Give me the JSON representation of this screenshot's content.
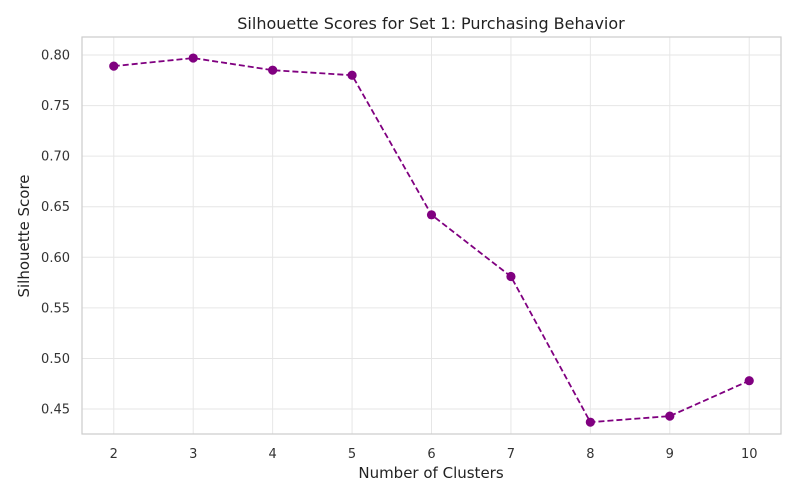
{
  "chart_data": {
    "type": "line",
    "title": "Silhouette Scores for Set 1: Purchasing Behavior",
    "xlabel": "Number of Clusters",
    "ylabel": "Silhouette Score",
    "x": [
      2,
      3,
      4,
      5,
      6,
      7,
      8,
      9,
      10
    ],
    "series": [
      {
        "values": [
          0.789,
          0.797,
          0.785,
          0.78,
          0.642,
          0.581,
          0.437,
          0.443,
          0.478
        ],
        "color": "#800080",
        "line_style": "dashed",
        "marker": "circle"
      }
    ],
    "xticks": [
      "2",
      "3",
      "4",
      "5",
      "6",
      "7",
      "8",
      "9",
      "10"
    ],
    "yticks": [
      "0.45",
      "0.50",
      "0.55",
      "0.60",
      "0.65",
      "0.70",
      "0.75",
      "0.80"
    ],
    "xlim": [
      1.6,
      10.4
    ],
    "ylim": [
      0.4253,
      0.8178
    ],
    "grid": true
  }
}
